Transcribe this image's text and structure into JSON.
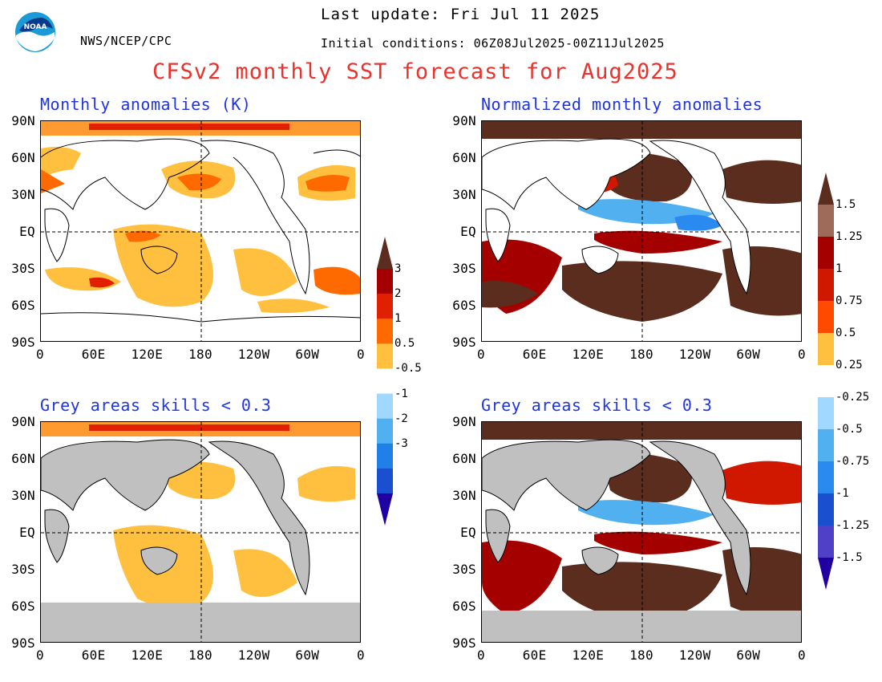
{
  "header": {
    "last_update": "Last update: Fri Jul 11 2025",
    "initial_conditions": "Initial conditions: 06Z08Jul2025-00Z11Jul2025",
    "agency": "NWS/NCEP/CPC",
    "title": "CFSv2 monthly SST forecast for Aug2025",
    "logo_text": "NOAA"
  },
  "panels": {
    "top_left_title": "Monthly anomalies (K)",
    "top_right_title": "Normalized monthly anomalies",
    "bottom_left_title": "Grey areas skills < 0.3",
    "bottom_right_title": "Grey areas skills < 0.3"
  },
  "axes": {
    "lat_labels": [
      "90N",
      "60N",
      "30N",
      "EQ",
      "30S",
      "60S",
      "90S"
    ],
    "lon_labels": [
      "0",
      "60E",
      "120E",
      "180",
      "120W",
      "60W",
      "0"
    ]
  },
  "colorbar_left": {
    "labels": [
      "3",
      "2",
      "1",
      "0.5",
      "-0.5",
      "-1",
      "-2",
      "-3"
    ],
    "colors": [
      "#5a2d1e",
      "#a50000",
      "#e02000",
      "#ff6a00",
      "#ffc040",
      "#ffffff",
      "#a0d8ff",
      "#50b0f0",
      "#2080e8",
      "#1a50d0",
      "#2000a0"
    ]
  },
  "colorbar_right": {
    "labels": [
      "1.5",
      "1.25",
      "1",
      "0.75",
      "0.5",
      "0.25",
      "-0.25",
      "-0.5",
      "-0.75",
      "-1",
      "-1.25",
      "-1.5"
    ],
    "colors": [
      "#5a2d1e",
      "#9e6a5a",
      "#a50000",
      "#d01800",
      "#ff4a00",
      "#ffc040",
      "#ffffff",
      "#a0d8ff",
      "#50b0f0",
      "#2a8af0",
      "#1a50d0",
      "#5040c8",
      "#2000a0"
    ]
  }
}
